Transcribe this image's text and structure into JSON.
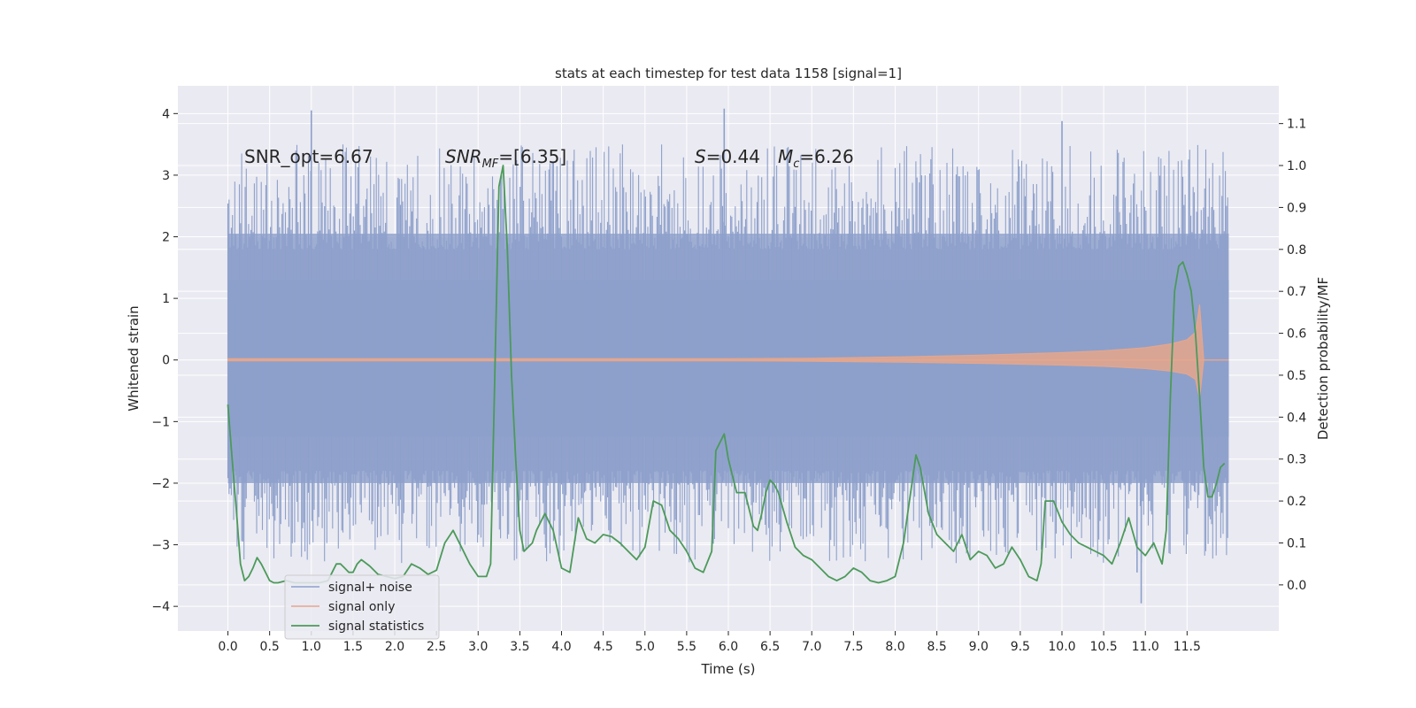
{
  "chart_data": {
    "type": "line",
    "title": "stats at each timestep for test data 1158 [signal=1]",
    "xlabel": "Time (s)",
    "ylabel": "Whitened strain",
    "ylabel_right": "Detection probability/MF",
    "xlim": [
      -0.6,
      12.6
    ],
    "ylim": [
      -4.4,
      4.45
    ],
    "ylim_right": [
      -0.11,
      1.19
    ],
    "x_ticks": [
      0.0,
      0.5,
      1.0,
      1.5,
      2.0,
      2.5,
      3.0,
      3.5,
      4.0,
      4.5,
      5.0,
      5.5,
      6.0,
      6.5,
      7.0,
      7.5,
      8.0,
      8.5,
      9.0,
      9.5,
      10.0,
      10.5,
      11.0,
      11.5
    ],
    "x_tick_labels": [
      "0.0",
      "0.5",
      "1.0",
      "1.5",
      "2.0",
      "2.5",
      "3.0",
      "3.5",
      "4.0",
      "4.5",
      "5.0",
      "5.5",
      "6.0",
      "6.5",
      "7.0",
      "7.5",
      "8.0",
      "8.5",
      "9.0",
      "9.5",
      "10.0",
      "10.5",
      "11.0",
      "11.5"
    ],
    "y_ticks": [
      -4,
      -3,
      -2,
      -1,
      0,
      1,
      2,
      3,
      4
    ],
    "y_tick_labels": [
      "−4",
      "−3",
      "−2",
      "−1",
      "0",
      "1",
      "2",
      "3",
      "4"
    ],
    "y_ticks_right": [
      0.0,
      0.1,
      0.2,
      0.3,
      0.4,
      0.5,
      0.6,
      0.7,
      0.8,
      0.9,
      1.0,
      1.1
    ],
    "y_tick_labels_right": [
      "0.0",
      "0.1",
      "0.2",
      "0.3",
      "0.4",
      "0.5",
      "0.6",
      "0.7",
      "0.8",
      "0.9",
      "1.0",
      "1.1"
    ],
    "grid": true,
    "legend_position": "lower-left",
    "annotations": {
      "snr_opt": "SNR_opt=6.67",
      "snr_mf_main": "SNR",
      "snr_mf_sub": "MF",
      "snr_mf_value": "=[6.35]",
      "s_symbol": "S",
      "s_value": "=0.44",
      "mc_symbol": "M",
      "mc_sub": "c",
      "mc_value": "=6.26"
    },
    "series": [
      {
        "name": "signal+ noise",
        "color": "#8da0cb",
        "axis": "left",
        "style": "dense-noise",
        "x_range": [
          0.0,
          12.0
        ],
        "core_band": [
          -1.25,
          1.3
        ],
        "outer_band": [
          -2.0,
          2.05
        ],
        "peaks_x": [
          1.0,
          5.95,
          10.0,
          10.9,
          10.95
        ],
        "peaks_y": [
          4.05,
          4.08,
          3.88,
          -3.45,
          -3.95
        ]
      },
      {
        "name": "signal only",
        "color": "#e5a68c",
        "axis": "left",
        "style": "chirp",
        "x": [
          0.0,
          6.0,
          7.0,
          8.0,
          9.0,
          10.0,
          10.5,
          11.0,
          11.3,
          11.5,
          11.6,
          11.65,
          11.7
        ],
        "y_amplitude": [
          0.02,
          0.02,
          0.03,
          0.05,
          0.08,
          0.12,
          0.15,
          0.2,
          0.26,
          0.33,
          0.45,
          0.9,
          0.0
        ]
      },
      {
        "name": "signal statistics",
        "color": "#4c9a5a",
        "axis": "right",
        "x": [
          0.0,
          0.05,
          0.1,
          0.15,
          0.2,
          0.25,
          0.3,
          0.35,
          0.4,
          0.45,
          0.5,
          0.55,
          0.6,
          0.7,
          0.8,
          0.9,
          1.0,
          1.1,
          1.2,
          1.25,
          1.3,
          1.35,
          1.4,
          1.45,
          1.5,
          1.55,
          1.6,
          1.7,
          1.8,
          1.9,
          2.0,
          2.1,
          2.2,
          2.3,
          2.4,
          2.5,
          2.6,
          2.7,
          2.8,
          2.9,
          3.0,
          3.1,
          3.15,
          3.2,
          3.25,
          3.3,
          3.35,
          3.4,
          3.45,
          3.5,
          3.55,
          3.6,
          3.65,
          3.7,
          3.8,
          3.9,
          4.0,
          4.1,
          4.2,
          4.3,
          4.4,
          4.5,
          4.6,
          4.7,
          4.8,
          4.9,
          5.0,
          5.1,
          5.2,
          5.3,
          5.4,
          5.5,
          5.6,
          5.7,
          5.8,
          5.85,
          5.9,
          5.95,
          6.0,
          6.05,
          6.1,
          6.2,
          6.3,
          6.35,
          6.4,
          6.45,
          6.5,
          6.55,
          6.6,
          6.7,
          6.8,
          6.9,
          7.0,
          7.1,
          7.2,
          7.3,
          7.4,
          7.5,
          7.6,
          7.7,
          7.8,
          7.9,
          8.0,
          8.1,
          8.2,
          8.25,
          8.3,
          8.4,
          8.5,
          8.6,
          8.7,
          8.8,
          8.9,
          9.0,
          9.1,
          9.2,
          9.3,
          9.4,
          9.5,
          9.6,
          9.7,
          9.75,
          9.8,
          9.9,
          10.0,
          10.1,
          10.2,
          10.3,
          10.4,
          10.5,
          10.6,
          10.7,
          10.8,
          10.9,
          11.0,
          11.1,
          11.2,
          11.25,
          11.3,
          11.35,
          11.4,
          11.45,
          11.5,
          11.55,
          11.6,
          11.65,
          11.7,
          11.75,
          11.8,
          11.85,
          11.9,
          11.95
        ],
        "y": [
          0.43,
          0.3,
          0.18,
          0.05,
          0.01,
          0.02,
          0.04,
          0.065,
          0.05,
          0.03,
          0.01,
          0.005,
          0.005,
          0.01,
          0.005,
          0.005,
          0.005,
          0.005,
          0.01,
          0.03,
          0.05,
          0.05,
          0.04,
          0.03,
          0.03,
          0.05,
          0.06,
          0.045,
          0.025,
          0.02,
          0.015,
          0.02,
          0.05,
          0.04,
          0.025,
          0.035,
          0.1,
          0.13,
          0.09,
          0.05,
          0.02,
          0.02,
          0.05,
          0.5,
          0.95,
          1.0,
          0.8,
          0.5,
          0.3,
          0.13,
          0.08,
          0.09,
          0.1,
          0.13,
          0.17,
          0.13,
          0.04,
          0.03,
          0.16,
          0.11,
          0.1,
          0.12,
          0.115,
          0.1,
          0.08,
          0.06,
          0.09,
          0.2,
          0.19,
          0.13,
          0.11,
          0.08,
          0.04,
          0.03,
          0.08,
          0.32,
          0.34,
          0.36,
          0.3,
          0.26,
          0.22,
          0.22,
          0.14,
          0.13,
          0.17,
          0.22,
          0.25,
          0.24,
          0.22,
          0.15,
          0.09,
          0.07,
          0.06,
          0.04,
          0.02,
          0.01,
          0.02,
          0.04,
          0.03,
          0.01,
          0.005,
          0.01,
          0.02,
          0.1,
          0.24,
          0.31,
          0.28,
          0.17,
          0.12,
          0.1,
          0.08,
          0.12,
          0.06,
          0.08,
          0.07,
          0.04,
          0.05,
          0.09,
          0.06,
          0.02,
          0.01,
          0.05,
          0.2,
          0.2,
          0.15,
          0.12,
          0.1,
          0.09,
          0.08,
          0.07,
          0.05,
          0.1,
          0.16,
          0.09,
          0.07,
          0.1,
          0.05,
          0.13,
          0.45,
          0.7,
          0.76,
          0.77,
          0.74,
          0.7,
          0.6,
          0.45,
          0.28,
          0.21,
          0.21,
          0.24,
          0.28,
          0.29
        ]
      }
    ]
  }
}
